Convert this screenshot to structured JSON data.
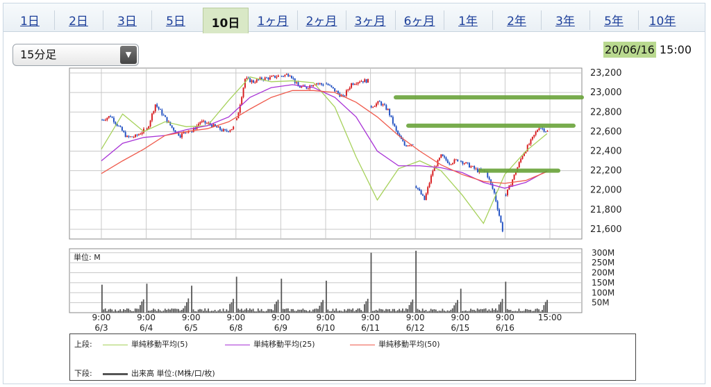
{
  "tabs": [
    {
      "label": "1日"
    },
    {
      "label": "2日"
    },
    {
      "label": "3日"
    },
    {
      "label": "5日"
    },
    {
      "label": "10日"
    },
    {
      "label": "1ヶ月"
    },
    {
      "label": "2ヶ月"
    },
    {
      "label": "3ヶ月"
    },
    {
      "label": "6ヶ月"
    },
    {
      "label": "1年"
    },
    {
      "label": "2年"
    },
    {
      "label": "3年"
    },
    {
      "label": "5年"
    },
    {
      "label": "10年"
    }
  ],
  "active_tab": "10日",
  "interval_select": {
    "value": "15分足"
  },
  "datetime": {
    "date": "20/06/16",
    "time": "15:00"
  },
  "colors": {
    "candle_up": "#d7191c",
    "candle_down": "#1f4fc2",
    "ma5": "#a6d15a",
    "ma25": "#a832d6",
    "ma50": "#ef5a4c",
    "volume": "#555555",
    "annotation": "#6aa43a",
    "grid": "#c8c8c8"
  },
  "chart_data": [
    {
      "type": "candlestick",
      "title": "",
      "ylim": [
        21500,
        23250
      ],
      "yticks": [
        21600,
        21800,
        22000,
        22200,
        22400,
        22600,
        22800,
        23000,
        23200
      ],
      "ytick_labels": [
        "21,600",
        "21,800",
        "22,000",
        "22,200",
        "22,400",
        "22,600",
        "22,800",
        "23,000",
        "23,200"
      ],
      "x_ticks": [
        {
          "time": "9:00",
          "date": "6/3"
        },
        {
          "time": "9:00",
          "date": "6/4"
        },
        {
          "time": "9:00",
          "date": "6/5"
        },
        {
          "time": "9:00",
          "date": "6/8"
        },
        {
          "time": "9:00",
          "date": "6/9"
        },
        {
          "time": "9:00",
          "date": "6/10"
        },
        {
          "time": "9:00",
          "date": "6/11"
        },
        {
          "time": "9:00",
          "date": "6/12"
        },
        {
          "time": "9:00",
          "date": "6/15"
        },
        {
          "time": "9:00",
          "date": "6/16"
        },
        {
          "time": "15:00",
          "date": ""
        }
      ],
      "sessions": [
        {
          "date": "6/3",
          "path": [
            22720,
            22760,
            22650,
            22540,
            22550,
            22610
          ]
        },
        {
          "date": "6/4",
          "path": [
            22620,
            22880,
            22760,
            22640,
            22560,
            22620
          ]
        },
        {
          "date": "6/5",
          "path": [
            22600,
            22700,
            22680,
            22640,
            22600,
            22640
          ]
        },
        {
          "date": "6/8",
          "path": [
            22720,
            23140,
            23110,
            23140,
            23150,
            23170
          ]
        },
        {
          "date": "6/9",
          "path": [
            23170,
            23190,
            23060,
            23050,
            23100,
            23080
          ]
        },
        {
          "date": "6/10",
          "path": [
            23090,
            23020,
            22950,
            23090,
            23120,
            23120
          ]
        },
        {
          "date": "6/11",
          "path": [
            22860,
            22900,
            22820,
            22600,
            22460,
            22480
          ]
        },
        {
          "date": "6/12",
          "path": [
            22040,
            21900,
            22200,
            22350,
            22280,
            22310
          ]
        },
        {
          "date": "6/15",
          "path": [
            22300,
            22250,
            22200,
            22190,
            21970,
            21590
          ]
        },
        {
          "date": "6/16",
          "path": [
            21950,
            22150,
            22360,
            22500,
            22650,
            22600
          ]
        }
      ],
      "series": [
        {
          "name": "単純移動平均(5)",
          "values": [
            22420,
            22780,
            22600,
            22700,
            22650,
            22660,
            22920,
            23160,
            23110,
            23120,
            23100,
            22850,
            22340,
            21900,
            22220,
            22300,
            22200,
            21950,
            21660,
            22160,
            22400,
            22580
          ]
        },
        {
          "name": "単純移動平均(25)",
          "values": [
            22300,
            22480,
            22540,
            22560,
            22620,
            22660,
            22750,
            22950,
            23050,
            23080,
            23050,
            22950,
            22750,
            22400,
            22250,
            22250,
            22230,
            22180,
            22080,
            22020,
            22080,
            22200
          ]
        },
        {
          "name": "単純移動平均(50)",
          "values": [
            22170,
            22300,
            22420,
            22560,
            22600,
            22630,
            22700,
            22830,
            22950,
            23020,
            23020,
            23000,
            22900,
            22750,
            22560,
            22400,
            22260,
            22160,
            22090,
            22070,
            22100,
            22190
          ]
        }
      ],
      "annotations": [
        22950,
        22660,
        22200
      ]
    },
    {
      "type": "bar",
      "title": "単位: M",
      "ylim": [
        0,
        320
      ],
      "yticks": [
        50,
        100,
        150,
        200,
        250,
        300
      ],
      "ytick_labels": [
        "50M",
        "100M",
        "150M",
        "200M",
        "250M",
        "300M"
      ],
      "series": [
        {
          "name": "出来高 単位:(M株/口/枚)",
          "session_peaks": [
            140,
            145,
            135,
            180,
            170,
            160,
            300,
            310,
            120,
            155
          ]
        }
      ]
    }
  ],
  "legend": {
    "upper_label": "上段:",
    "lower_label": "下段:",
    "items": [
      {
        "label": "単純移動平均(5)"
      },
      {
        "label": "単純移動平均(25)"
      },
      {
        "label": "単純移動平均(50)"
      },
      {
        "label": "出来高 単位:(M株/口/枚)"
      }
    ]
  }
}
